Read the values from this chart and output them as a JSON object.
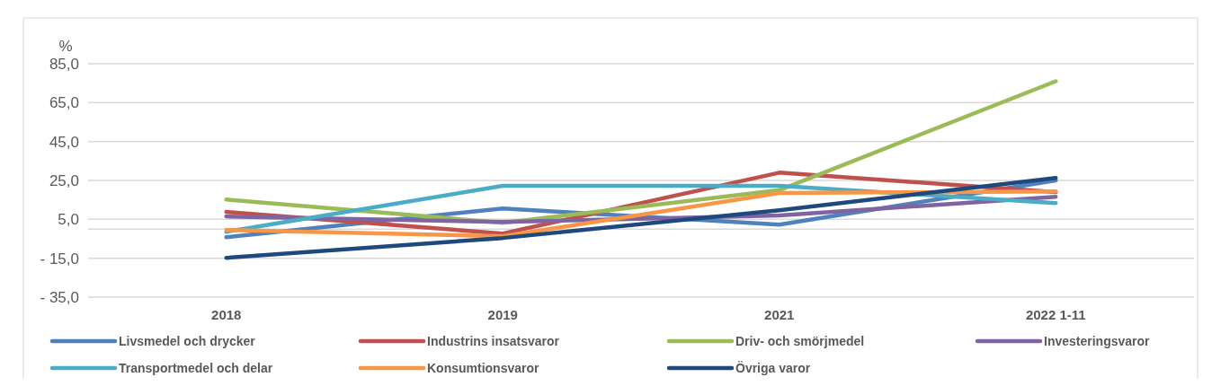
{
  "chart_data": {
    "type": "line",
    "ylabel": "%",
    "categories": [
      "2018",
      "2019",
      "2021",
      "2022 1-11"
    ],
    "series": [
      {
        "name": "Livsmedel och drycker",
        "color": "#4f81bd",
        "values": [
          -4.2,
          10.6,
          2.3,
          25
        ]
      },
      {
        "name": "Industrins insatsvaror",
        "color": "#c0504d",
        "values": [
          8.8,
          -2.3,
          29,
          19
        ]
      },
      {
        "name": "Driv- och smörjmedel",
        "color": "#9bbb59",
        "values": [
          15.2,
          3.2,
          20,
          76
        ]
      },
      {
        "name": "Investeringsvaror",
        "color": "#8064a2",
        "values": [
          6.5,
          3.7,
          7,
          16.6
        ]
      },
      {
        "name": "Transportmedel och delar",
        "color": "#4bacc6",
        "values": [
          -1.4,
          22.2,
          22.2,
          13.4
        ]
      },
      {
        "name": "Konsumtionsvaror",
        "color": "#f79646",
        "values": [
          -0.5,
          -3.7,
          18.5,
          19.4
        ]
      },
      {
        "name": "Övriga varor",
        "color": "#1f497d",
        "values": [
          -14.8,
          -4.6,
          9.7,
          26.3
        ]
      }
    ],
    "ylim": [
      -35,
      85
    ],
    "yticks": [
      {
        "value": -35,
        "label": "- 35,0"
      },
      {
        "value": -15,
        "label": "- 15,0"
      },
      {
        "value": 5,
        "label": "5,0"
      },
      {
        "value": 25,
        "label": "25,0"
      },
      {
        "value": 45,
        "label": "45,0"
      },
      {
        "value": 65,
        "label": "65,0"
      },
      {
        "value": 85,
        "label": "85,0"
      }
    ],
    "grid": "y",
    "legend": "bottom",
    "marker": "none",
    "line_style": "solid"
  }
}
